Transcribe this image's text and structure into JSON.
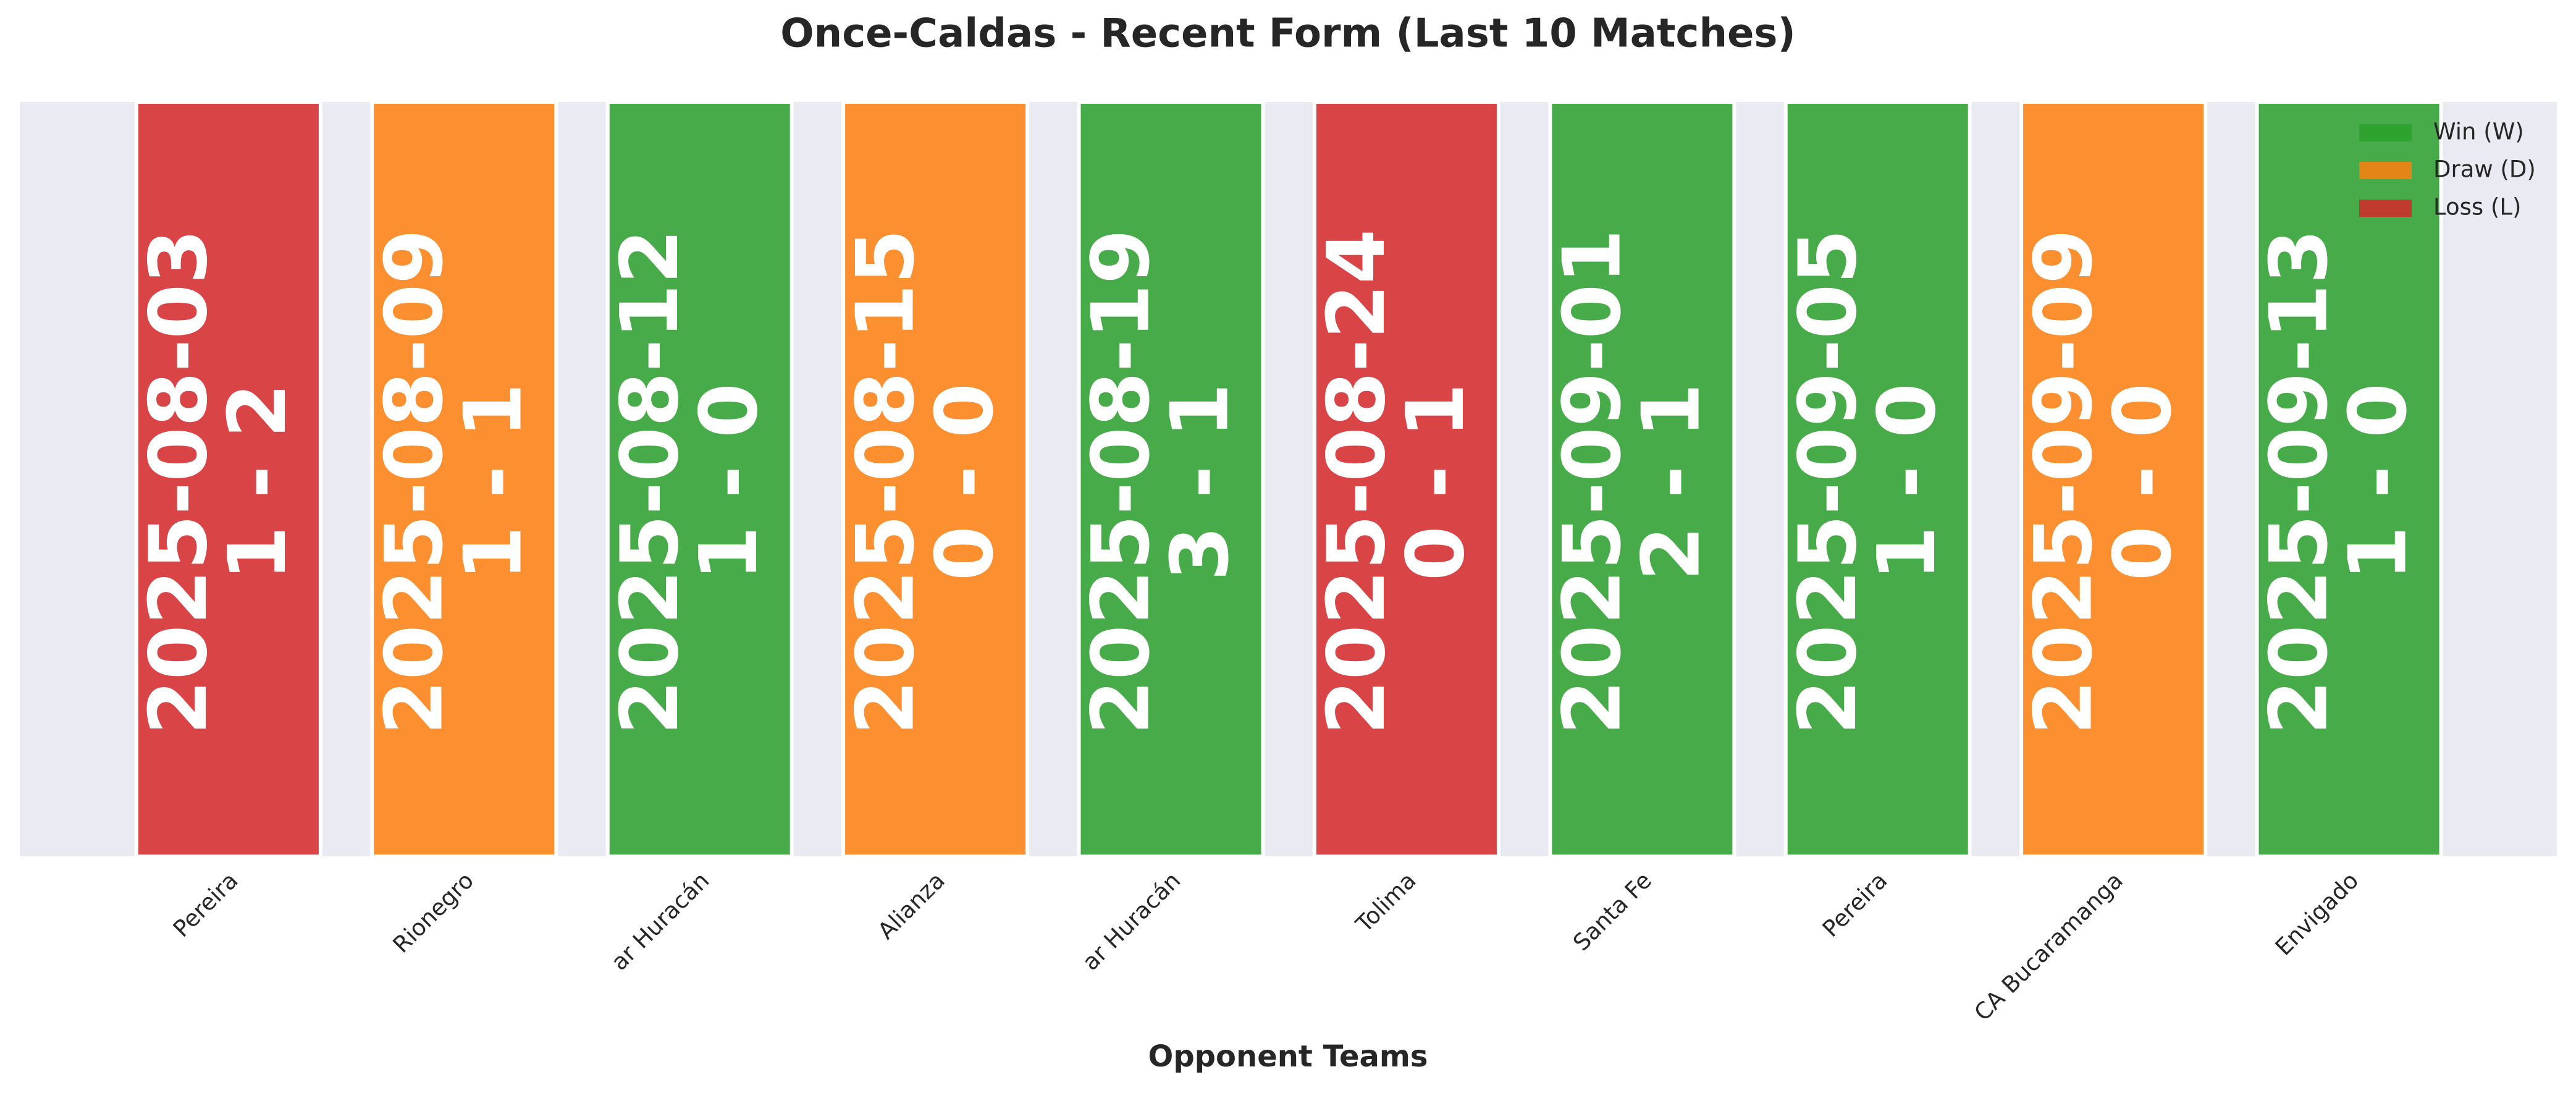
{
  "chart_data": {
    "type": "form",
    "title": "Once-Caldas - Recent Form (Last 10 Matches)",
    "x_label": "Opponent Teams",
    "categories": [
      "Pereira",
      "Rionegro",
      "ar Huracán",
      "Alianza",
      "ar Huracán",
      "Tolima",
      "Santa Fe",
      "Pereira",
      "CA Bucaramanga",
      "Envigado"
    ],
    "dates": [
      "2025-08-03",
      "2025-08-09",
      "2025-08-12",
      "2025-08-15",
      "2025-08-19",
      "2025-08-24",
      "2025-09-01",
      "2025-09-05",
      "2025-09-09",
      "2025-09-13"
    ],
    "scores": [
      "1 - 2",
      "1 - 1",
      "1 - 0",
      "0 - 0",
      "3 - 1",
      "0 - 1",
      "2 - 1",
      "1 - 0",
      "0 - 0",
      "1 - 0"
    ],
    "results": [
      "Loss (L)",
      "Draw (D)",
      "Win (W)",
      "Draw (D)",
      "Win (W)",
      "Loss (L)",
      "Win (W)",
      "Win (W)",
      "Draw (D)",
      "Win (W)"
    ],
    "series": [
      {
        "name": "Win (W)",
        "color": "#2ca02c"
      },
      {
        "name": "Draw (D)",
        "color": "#ff7f0e"
      },
      {
        "name": "Loss (L)",
        "color": "#d62728"
      }
    ],
    "legend": "upper right"
  }
}
